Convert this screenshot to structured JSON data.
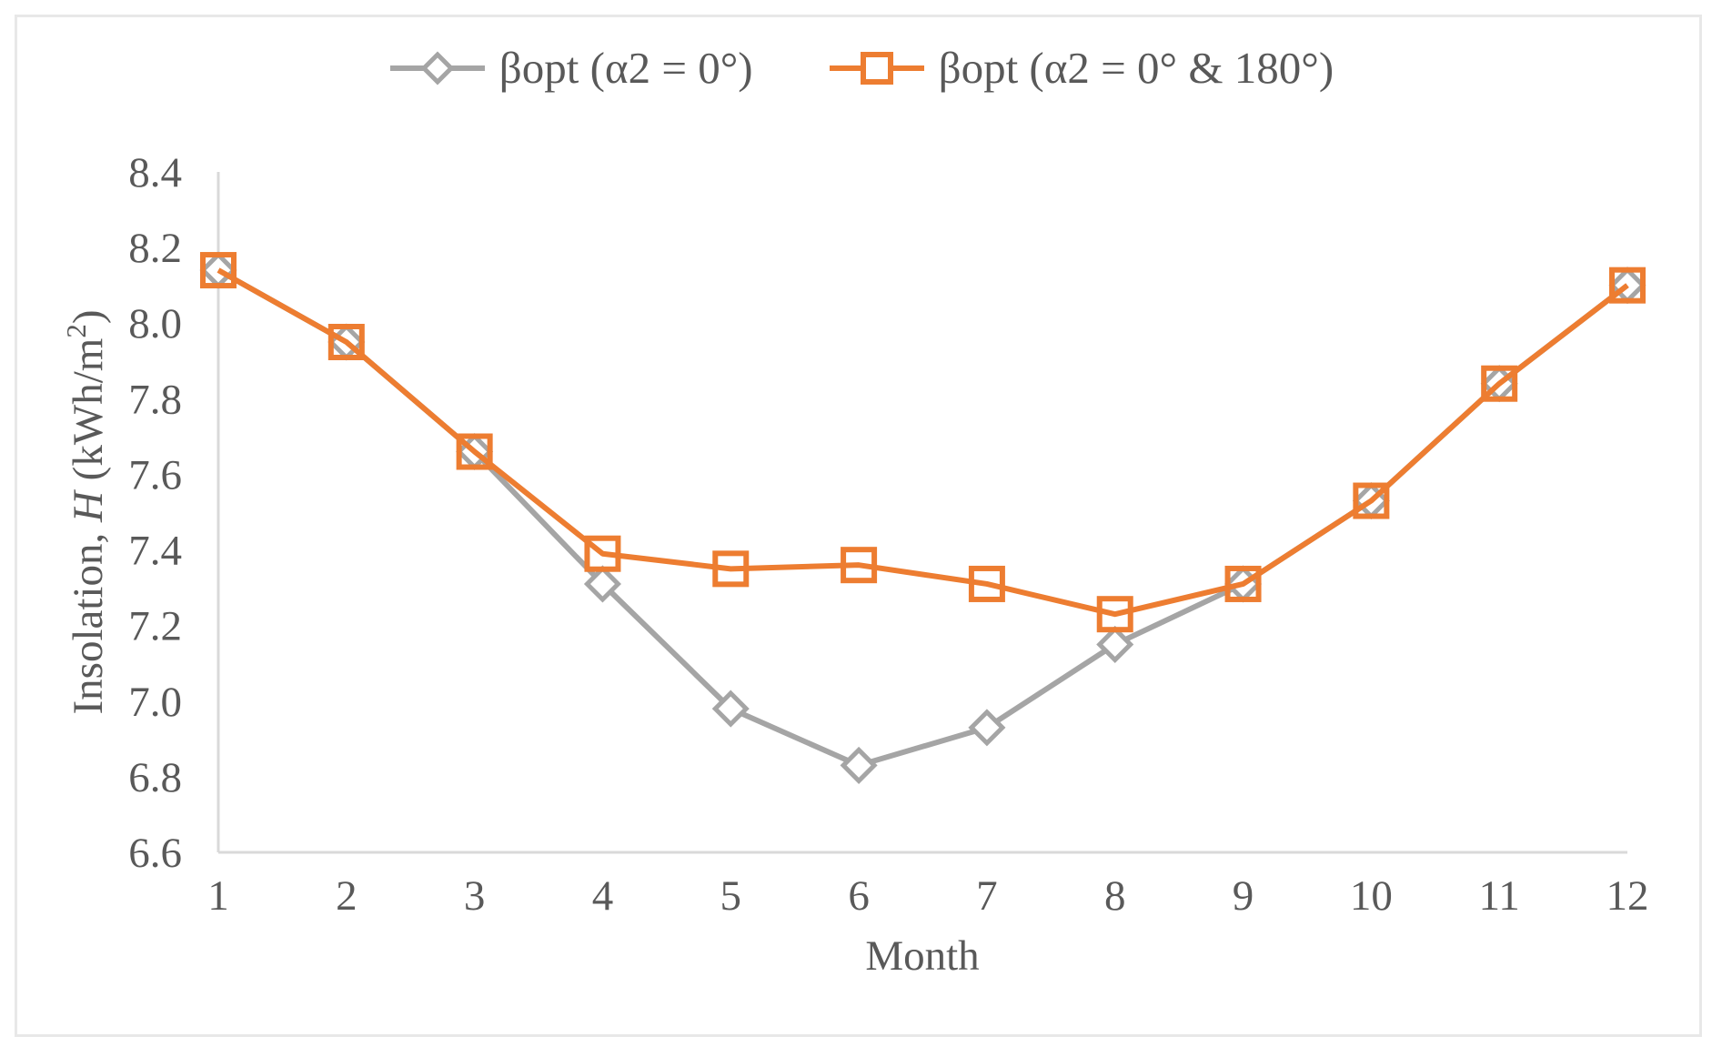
{
  "legend": {
    "series1_label": "βopt (α2 = 0°)",
    "series2_label": "βopt (α2 = 0° & 180°)"
  },
  "axes": {
    "x_title": "Month",
    "y_title_prefix": "Insolation, ",
    "y_title_var": "H",
    "y_title_unit_open": " (kWh/m",
    "y_title_sup": "2",
    "y_title_close": ")"
  },
  "colors": {
    "series1": "#A5A5A5",
    "series2": "#ED7D31",
    "axis_line": "#D9D9D9",
    "text": "#595959",
    "frame_border": "#E8E8E8"
  },
  "chart_data": {
    "type": "line",
    "title": "",
    "xlabel": "Month",
    "ylabel": "Insolation, H (kWh/m2)",
    "categories": [
      1,
      2,
      3,
      4,
      5,
      6,
      7,
      8,
      9,
      10,
      11,
      12
    ],
    "series": [
      {
        "name": "βopt (α2 = 0°)",
        "marker": "diamond",
        "color": "#A5A5A5",
        "values": [
          8.14,
          7.95,
          7.66,
          7.31,
          6.98,
          6.83,
          6.93,
          7.15,
          7.31,
          7.53,
          7.84,
          8.1
        ]
      },
      {
        "name": "βopt (α2 = 0° & 180°)",
        "marker": "square",
        "color": "#ED7D31",
        "values": [
          8.14,
          7.95,
          7.66,
          7.39,
          7.35,
          7.36,
          7.31,
          7.23,
          7.31,
          7.53,
          7.84,
          8.1
        ]
      }
    ],
    "ylim": [
      6.6,
      8.4
    ],
    "y_tick_step": 0.2,
    "y_ticks": [
      6.6,
      6.8,
      7.0,
      7.2,
      7.4,
      7.6,
      7.8,
      8.0,
      8.2,
      8.4
    ],
    "grid": false,
    "legend_position": "top-center"
  }
}
